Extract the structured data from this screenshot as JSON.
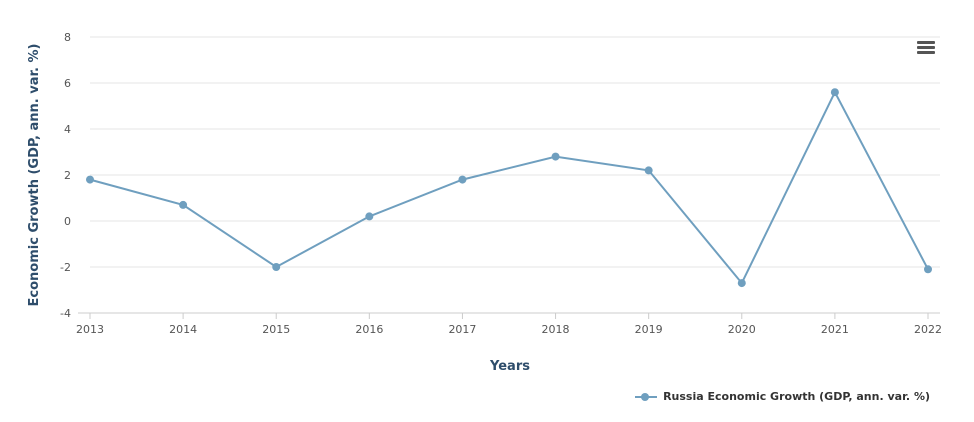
{
  "chart_data": {
    "type": "line",
    "x": [
      "2013",
      "2014",
      "2015",
      "2016",
      "2017",
      "2018",
      "2019",
      "2020",
      "2021",
      "2022"
    ],
    "series": [
      {
        "name": "Russia Economic Growth (GDP, ann. var. %)",
        "values": [
          1.8,
          0.7,
          -2.0,
          0.2,
          1.8,
          2.8,
          2.2,
          -2.7,
          5.6,
          -2.1
        ]
      }
    ],
    "xlabel": "Years",
    "ylabel": "Economic Growth (GDP, ann. var. %)",
    "ylim": [
      -4,
      8
    ],
    "yticks": [
      "8",
      "6",
      "4",
      "2",
      "0",
      "-2",
      "-4"
    ],
    "grid": true,
    "legend_position": "bottom-right",
    "colors": {
      "series": "#6f9fbf",
      "axis_title": "#2e4d6b",
      "grid": "#e6e6e6",
      "tick": "#555555"
    }
  },
  "toolbar": {
    "menu_icon": "hamburger-menu-icon"
  }
}
